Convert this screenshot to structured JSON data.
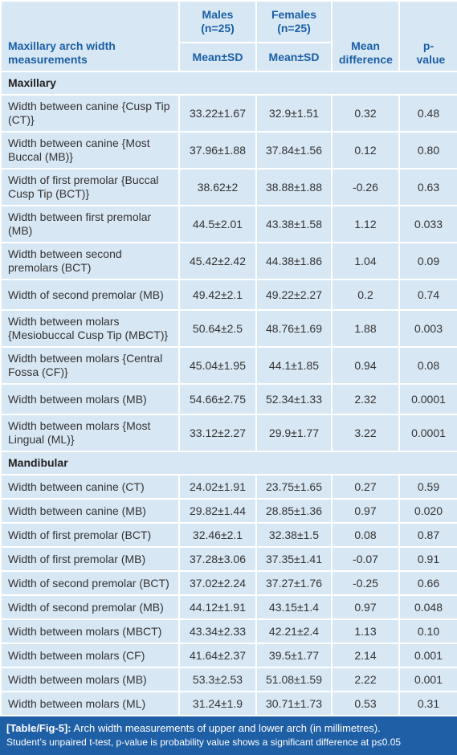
{
  "header": {
    "title": "Maxillary arch width measurements",
    "males": "Males",
    "males_n": "(n=25)",
    "females": "Females",
    "females_n": "(n=25)",
    "males_stat": "Mean±SD",
    "females_stat": "Mean±SD",
    "mean_difference": "Mean difference",
    "p_value": "p-value"
  },
  "sections": [
    {
      "name": "Maxillary",
      "rows": [
        [
          "Width between canine {Cusp Tip (CT)}",
          "33.22±1.67",
          "32.9±1.51",
          "0.32",
          "0.48"
        ],
        [
          "Width between canine {Most Buccal (MB)}",
          "37.96±1.88",
          "37.84±1.56",
          "0.12",
          "0.80"
        ],
        [
          "Width of first premolar {Buccal Cusp Tip (BCT)}",
          "38.62±2",
          "38.88±1.88",
          "-0.26",
          "0.63"
        ],
        [
          "Width between first premolar (MB)",
          "44.5±2.01",
          "43.38±1.58",
          "1.12",
          "0.033"
        ],
        [
          "Width between second premolars (BCT)",
          "45.42±2.42",
          "44.38±1.86",
          "1.04",
          "0.09"
        ],
        [
          "Width of second premolar (MB)",
          "49.42±2.1",
          "49.22±2.27",
          "0.2",
          "0.74"
        ],
        [
          "Width between molars {Mesiobuccal Cusp Tip (MBCT)}",
          "50.64±2.5",
          "48.76±1.69",
          "1.88",
          "0.003"
        ],
        [
          "Width between molars {Central Fossa (CF)}",
          "45.04±1.95",
          "44.1±1.85",
          "0.94",
          "0.08"
        ],
        [
          "Width between molars (MB)",
          "54.66±2.75",
          "52.34±1.33",
          "2.32",
          "0.0001"
        ],
        [
          "Width between molars {Most Lingual (ML)}",
          "33.12±2.27",
          "29.9±1.77",
          "3.22",
          "0.0001"
        ]
      ]
    },
    {
      "name": "Mandibular",
      "rows": [
        [
          "Width between canine (CT)",
          "24.02±1.91",
          "23.75±1.65",
          "0.27",
          "0.59"
        ],
        [
          "Width between canine (MB)",
          "29.82±1.44",
          "28.85±1.36",
          "0.97",
          "0.020"
        ],
        [
          "Width of first premolar (BCT)",
          "32.46±2.1",
          "32.38±1.5",
          "0.08",
          "0.87"
        ],
        [
          "Width of first premolar (MB)",
          "37.28±3.06",
          "37.35±1.41",
          "-0.07",
          "0.91"
        ],
        [
          "Width of second premolar (BCT)",
          "37.02±2.24",
          "37.27±1.76",
          "-0.25",
          "0.66"
        ],
        [
          "Width of second premolar (MB)",
          "44.12±1.91",
          "43.15±1.4",
          "0.97",
          "0.048"
        ],
        [
          "Width between molars (MBCT)",
          "43.34±2.33",
          "42.21±2.4",
          "1.13",
          "0.10"
        ],
        [
          "Width between molars (CF)",
          "41.64±2.37",
          "39.5±1.77",
          "2.14",
          "0.001"
        ],
        [
          "Width between molars (MB)",
          "53.3±2.53",
          "51.08±1.59",
          "2.22",
          "0.001"
        ],
        [
          "Width between molars (ML)",
          "31.24±1.9",
          "30.71±1.73",
          "0.53",
          "0.31"
        ]
      ]
    }
  ],
  "caption": {
    "label": "[Table/Fig-5]:",
    "text": "Arch width measurements of upper and lower arch (in millimetres).",
    "note": "Student’s unpaired t-test, p-value is probability value shows a significant difference at p≤0.05"
  }
}
